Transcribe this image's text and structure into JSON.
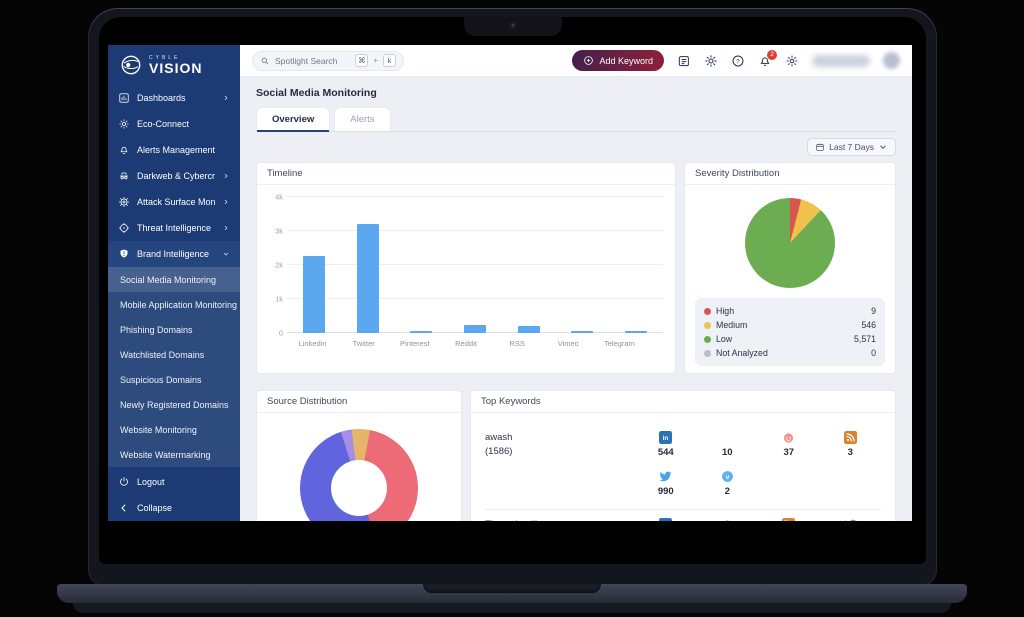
{
  "brand": {
    "logo_top": "CYBLE",
    "logo_main": "VISION"
  },
  "sidebar": {
    "items": [
      {
        "label": "Dashboards"
      },
      {
        "label": "Eco-Connect"
      },
      {
        "label": "Alerts Management"
      },
      {
        "label": "Darkweb & Cybercrime"
      },
      {
        "label": "Attack Surface Monitoring"
      },
      {
        "label": "Threat Intelligence"
      },
      {
        "label": "Brand Intelligence"
      }
    ],
    "submenu": [
      {
        "label": "Social Media Monitoring",
        "selected": true
      },
      {
        "label": "Mobile Application Monitoring"
      },
      {
        "label": "Phishing Domains"
      },
      {
        "label": "Watchlisted Domains"
      },
      {
        "label": "Suspicious Domains"
      },
      {
        "label": "Newly Registered Domains"
      },
      {
        "label": "Website Monitoring"
      },
      {
        "label": "Website Watermarking"
      }
    ],
    "logout_label": "Logout",
    "collapse_label": "Collapse"
  },
  "topbar": {
    "search_placeholder": "Spotlight Search",
    "shortcut_key_1": "⌘",
    "shortcut_plus": "+",
    "shortcut_key_2": "k",
    "add_keyword_label": "Add Keyword",
    "notification_count": "2"
  },
  "page": {
    "title": "Social Media Monitoring",
    "tab_overview": "Overview",
    "tab_alerts": "Alerts",
    "date_filter": "Last 7 Days"
  },
  "chart_data": [
    {
      "type": "bar",
      "title": "Timeline",
      "categories": [
        "Linkedin",
        "Twitter",
        "Pinterest",
        "Reddit",
        "RSS",
        "Vimeo",
        "Telegram"
      ],
      "values": [
        2270,
        3200,
        60,
        230,
        210,
        70,
        70
      ],
      "ylim": [
        0,
        4000
      ],
      "yticks": [
        "0",
        "1k",
        "2k",
        "3k",
        "4k"
      ],
      "bar_color": "#5ba7f0",
      "grid": true,
      "legend_position": "none"
    },
    {
      "type": "pie",
      "title": "Severity Distribution",
      "labels": [
        "High",
        "Medium",
        "Low",
        "Not Analyzed"
      ],
      "values": [
        9,
        546,
        5571,
        0
      ],
      "display_values": [
        "9",
        "546",
        "5,571",
        "0"
      ],
      "colors": [
        "#d9554e",
        "#f0c24d",
        "#6cad52",
        "#b9bec7"
      ],
      "visual_percents": [
        4,
        8,
        88,
        0
      ],
      "legend_position": "bottom"
    },
    {
      "type": "donut",
      "title": "Source Distribution",
      "slices": [
        {
          "color": "#e5b56b",
          "percent": 3
        },
        {
          "color": "#ed6a77",
          "percent": 42
        },
        {
          "color": "#6064dd",
          "percent": 50
        },
        {
          "color": "#a78de6",
          "percent": 3
        },
        {
          "color": "#e5b56b",
          "percent": 2
        }
      ]
    }
  ],
  "top_keywords": {
    "title": "Top Keywords",
    "rows": [
      {
        "keyword": "awash",
        "count": "(1586)",
        "cells": [
          {
            "icon": "linkedin-icon",
            "value": "544"
          },
          {
            "icon": "",
            "value": "10"
          },
          {
            "icon": "reddit-icon",
            "value": "37"
          },
          {
            "icon": "rss-icon",
            "value": "3"
          }
        ],
        "cells2": [
          {
            "icon": "twitter-icon",
            "value": "990"
          },
          {
            "icon": "vimeo-icon",
            "value": "2"
          }
        ]
      },
      {
        "keyword": "Threat Intelligence",
        "count": "",
        "cells": [
          {
            "icon": "linkedin-icon",
            "value": ""
          },
          {
            "icon": "reddit-icon",
            "value": ""
          },
          {
            "icon": "rss-icon",
            "value": ""
          },
          {
            "icon": "twitter-icon",
            "value": ""
          }
        ],
        "cells2": []
      }
    ]
  }
}
